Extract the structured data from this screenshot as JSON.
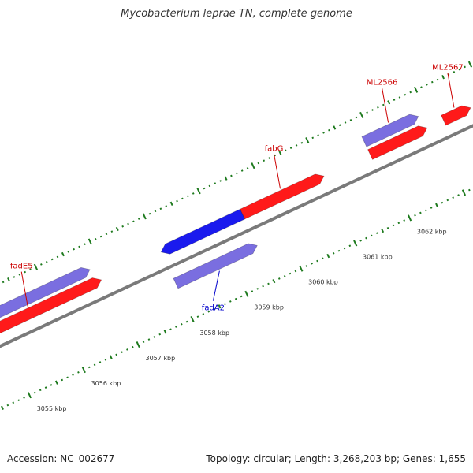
{
  "title": "Mycobacterium leprae TN, complete genome",
  "footer": {
    "accession": "Accession: NC_002677",
    "stats": "Topology: circular; Length: 3,268,203 bp; Genes: 1,655"
  },
  "colors": {
    "backbone": "#7a7a7a",
    "tick": "#1e7a1e",
    "gene_red": "#ff1a1a",
    "gene_blue": "#1a1aee",
    "gene_purple": "#7a6ee0",
    "label_red": "#cc0000",
    "label_blue": "#0000cc"
  },
  "scale": {
    "unit": "kbp",
    "labels": [
      "3055 kbp",
      "3056 kbp",
      "3057 kbp",
      "3058 kbp",
      "3059 kbp",
      "3060 kbp",
      "3061 kbp",
      "3062 kbp"
    ]
  },
  "features": [
    {
      "name": "fadE5",
      "kind": "red",
      "track": "upper",
      "strand": "+",
      "start_kb": 3054.3,
      "end_kb": 3056.9,
      "label": "fadE5"
    },
    {
      "name": "fadE5-pair",
      "kind": "purple",
      "track": "upper-outer",
      "strand": "+",
      "start_kb": 3054.3,
      "end_kb": 3056.8,
      "label": ""
    },
    {
      "name": "fadA2",
      "kind": "blue",
      "track": "upper",
      "strand": "-",
      "start_kb": 3058.0,
      "end_kb": 3059.5,
      "label": ""
    },
    {
      "name": "fadA2-pair",
      "kind": "purple",
      "track": "lower",
      "strand": "+",
      "start_kb": 3058.0,
      "end_kb": 3059.5,
      "label": "fadA2"
    },
    {
      "name": "fabG",
      "kind": "red",
      "track": "upper",
      "strand": "+",
      "start_kb": 3059.5,
      "end_kb": 3061.0,
      "label": "fabG"
    },
    {
      "name": "ML2566",
      "kind": "red",
      "track": "upper",
      "strand": "+",
      "start_kb": 3061.85,
      "end_kb": 3062.9,
      "label": ""
    },
    {
      "name": "ML2566-pair",
      "kind": "purple",
      "track": "upper-outer",
      "strand": "+",
      "start_kb": 3061.85,
      "end_kb": 3062.85,
      "label": "ML2566"
    },
    {
      "name": "ML2567",
      "kind": "red",
      "track": "upper",
      "strand": "+",
      "start_kb": 3063.2,
      "end_kb": 3063.7,
      "label": "ML2567"
    }
  ]
}
